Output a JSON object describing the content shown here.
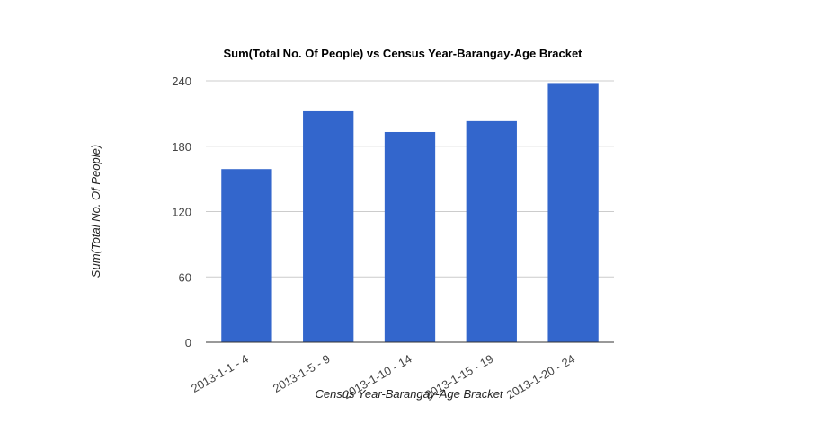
{
  "chart_data": {
    "type": "bar",
    "title": "Sum(Total No. Of People) vs Census Year-Barangay-Age Bracket",
    "xlabel": "Census Year-Barangay-Age Bracket",
    "ylabel": "Sum(Total No. Of People)",
    "categories": [
      "2013-1-1 - 4",
      "2013-1-5 - 9",
      "2013-1-10 - 14",
      "2013-1-15 - 19",
      "2013-1-20 - 24"
    ],
    "values": [
      159,
      212,
      193,
      203,
      238
    ],
    "ylim": [
      0,
      240
    ],
    "yticks": [
      "0",
      "60",
      "120",
      "180",
      "240"
    ],
    "grid": true,
    "legend": "none",
    "bar_color": "#3366cc",
    "grid_color": "#cccccc",
    "axis_color": "#333333"
  }
}
